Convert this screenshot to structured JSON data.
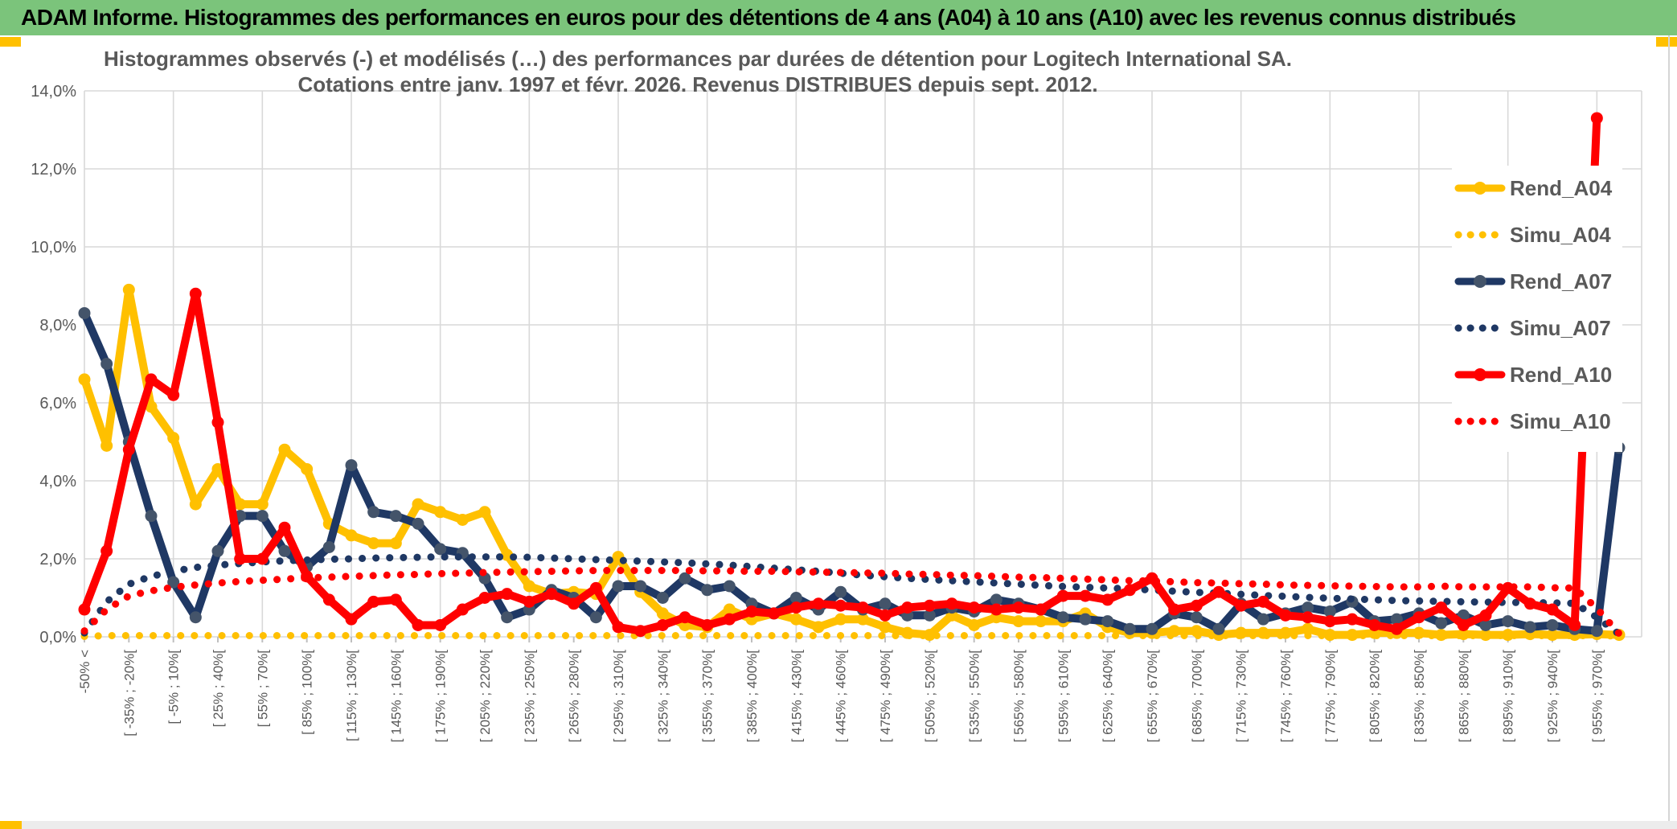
{
  "header": {
    "title": "ADAM Informe. Histogrammes des performances en euros pour des détentions de 4 ans (A04) à 10 ans (A10) avec les revenus connus distribués",
    "bg_color": "#7BC47B",
    "accent_color": "#FFC000"
  },
  "bottom_bar": {
    "bg_color": "#ECECEC",
    "accent_color": "#FFC000"
  },
  "colors": {
    "gold": "#FFC000",
    "navy": "#1F3864",
    "navy_marker": "#44546A",
    "red": "#FF0000",
    "grid": "#D9D9D9",
    "tick": "#BFBFBF",
    "text": "#595959",
    "legend_bg": "#FFFFFF"
  },
  "chart_data": {
    "type": "line",
    "title_lines": [
      "Histogrammes observés (-) et modélisés (…) des performances par durées de détention pour Logitech International SA.",
      "Cotations entre janv. 1997 et févr. 2026. Revenus DISTRIBUES depuis sept. 2012."
    ],
    "ylim": [
      0,
      14
    ],
    "ytick_step": 2,
    "ytick_labels": [
      "0,0%",
      "2,0%",
      "4,0%",
      "6,0%",
      "8,0%",
      "10,0%",
      "12,0%",
      "14,0%"
    ],
    "grid": true,
    "legend_position": "right-inside",
    "categories": [
      "-50% <",
      "",
      "[ -35% ; -20%[",
      "",
      "[ -5% ; 10%[",
      "",
      "[ 25% ; 40%[",
      "",
      "[ 55% ; 70%[",
      "",
      "[ 85% ; 100%[",
      "",
      "[ 115% ; 130%[",
      "",
      "[ 145% ; 160%[",
      "",
      "[ 175% ; 190%[",
      "",
      "[ 205% ; 220%[",
      "",
      "[ 235% ; 250%[",
      "",
      "[ 265% ; 280%[",
      "",
      "[ 295% ; 310%[",
      "",
      "[ 325% ; 340%[",
      "",
      "[ 355% ; 370%[",
      "",
      "[ 385% ; 400%[",
      "",
      "[ 415% ; 430%[",
      "",
      "[ 445% ; 460%[",
      "",
      "[ 475% ; 490%[",
      "",
      "[ 505% ; 520%[",
      "",
      "[ 535% ; 550%[",
      "",
      "[ 565% ; 580%[",
      "",
      "[ 595% ; 610%[",
      "",
      "[ 625% ; 640%[",
      "",
      "[ 655% ; 670%[",
      "",
      "[ 685% ; 700%[",
      "",
      "[ 715% ; 730%[",
      "",
      "[ 745% ; 760%[",
      "",
      "[ 775% ; 790%[",
      "",
      "[ 805% ; 820%[",
      "",
      "[ 835% ; 850%[",
      "",
      "[ 865% ; 880%[",
      "",
      "[ 895% ; 910%[",
      "",
      "[ 925% ; 940%[",
      "",
      "[ 955% ; 970%[",
      ""
    ],
    "series": [
      {
        "name": "Rend_A04",
        "style": "solid",
        "color": "#FFC000",
        "marker_color": "#FFC000",
        "values": [
          6.6,
          4.9,
          8.9,
          5.9,
          5.1,
          3.4,
          4.3,
          3.4,
          3.4,
          4.8,
          4.3,
          2.9,
          2.6,
          2.4,
          2.4,
          3.4,
          3.2,
          3.0,
          3.2,
          2.1,
          1.3,
          1.1,
          1.15,
          1.1,
          2.05,
          1.15,
          0.6,
          0.3,
          0.25,
          0.7,
          0.45,
          0.6,
          0.45,
          0.25,
          0.45,
          0.45,
          0.25,
          0.1,
          0.05,
          0.55,
          0.3,
          0.5,
          0.4,
          0.4,
          0.4,
          0.6,
          0.25,
          0.1,
          0.1,
          0.15,
          0.15,
          0.05,
          0.1,
          0.1,
          0.1,
          0.2,
          0.05,
          0.05,
          0.1,
          0.1,
          0.1,
          0.05,
          0.07,
          0.05,
          0.05,
          0.07,
          0.05,
          0.05,
          0.07,
          0.05
        ]
      },
      {
        "name": "Simu_A04",
        "style": "dotted",
        "color": "#FFC000",
        "marker_color": "#FFC000",
        "values": [
          0.01,
          0.03,
          0.03,
          0.03,
          0.03,
          0.03,
          0.03,
          0.03,
          0.03,
          0.03,
          0.03,
          0.03,
          0.03,
          0.03,
          0.03,
          0.03,
          0.03,
          0.03,
          0.03,
          0.03,
          0.03,
          0.03,
          0.03,
          0.03,
          0.03,
          0.03,
          0.03,
          0.03,
          0.03,
          0.03,
          0.03,
          0.03,
          0.03,
          0.03,
          0.03,
          0.03,
          0.03,
          0.03,
          0.03,
          0.03,
          0.03,
          0.03,
          0.03,
          0.03,
          0.03,
          0.03,
          0.03,
          0.03,
          0.03,
          0.03,
          0.03,
          0.03,
          0.03,
          0.03,
          0.03,
          0.03,
          0.03,
          0.03,
          0.03,
          0.03,
          0.03,
          0.03,
          0.03,
          0.03,
          0.03,
          0.03,
          0.03,
          0.03,
          0.03,
          0.02
        ]
      },
      {
        "name": "Rend_A07",
        "style": "solid",
        "color": "#1F3864",
        "marker_color": "#44546A",
        "values": [
          8.3,
          7.0,
          5.0,
          3.1,
          1.4,
          0.5,
          2.2,
          3.1,
          3.1,
          2.2,
          1.8,
          2.3,
          4.4,
          3.2,
          3.1,
          2.9,
          2.25,
          2.15,
          1.5,
          0.5,
          0.7,
          1.2,
          1.0,
          0.5,
          1.3,
          1.3,
          1.0,
          1.5,
          1.2,
          1.3,
          0.85,
          0.6,
          1.0,
          0.7,
          1.15,
          0.7,
          0.85,
          0.55,
          0.55,
          0.75,
          0.65,
          0.95,
          0.85,
          0.7,
          0.5,
          0.45,
          0.4,
          0.2,
          0.2,
          0.6,
          0.5,
          0.2,
          0.85,
          0.45,
          0.6,
          0.75,
          0.65,
          0.9,
          0.4,
          0.45,
          0.6,
          0.35,
          0.55,
          0.3,
          0.4,
          0.25,
          0.3,
          0.2,
          0.15,
          4.85
        ]
      },
      {
        "name": "Simu_A07",
        "style": "dotted",
        "color": "#1F3864",
        "marker_color": "#1F3864",
        "values": [
          0.1,
          0.9,
          1.35,
          1.55,
          1.68,
          1.78,
          1.84,
          1.88,
          1.92,
          1.95,
          1.97,
          1.99,
          2.0,
          2.02,
          2.03,
          2.04,
          2.05,
          2.05,
          2.05,
          2.05,
          2.04,
          2.02,
          2.0,
          1.98,
          1.96,
          1.94,
          1.92,
          1.9,
          1.87,
          1.84,
          1.8,
          1.76,
          1.72,
          1.68,
          1.63,
          1.58,
          1.54,
          1.5,
          1.47,
          1.44,
          1.41,
          1.38,
          1.35,
          1.32,
          1.29,
          1.27,
          1.25,
          1.23,
          1.2,
          1.17,
          1.14,
          1.12,
          1.09,
          1.06,
          1.04,
          1.01,
          0.99,
          0.97,
          0.95,
          0.93,
          0.92,
          0.91,
          0.9,
          0.89,
          0.88,
          0.88,
          0.87,
          0.86,
          0.5,
          0.07
        ]
      },
      {
        "name": "Rend_A10",
        "style": "solid",
        "color": "#FF0000",
        "marker_color": "#FF0000",
        "values": [
          0.7,
          2.2,
          4.8,
          6.6,
          6.2,
          8.8,
          5.5,
          2.0,
          2.0,
          2.8,
          1.55,
          0.95,
          0.45,
          0.9,
          0.95,
          0.3,
          0.3,
          0.7,
          1.0,
          1.1,
          0.9,
          1.1,
          0.85,
          1.25,
          0.25,
          0.15,
          0.3,
          0.5,
          0.3,
          0.45,
          0.65,
          0.6,
          0.75,
          0.85,
          0.8,
          0.75,
          0.55,
          0.75,
          0.8,
          0.85,
          0.75,
          0.7,
          0.75,
          0.7,
          1.05,
          1.05,
          0.95,
          1.2,
          1.5,
          0.7,
          0.8,
          1.15,
          0.8,
          0.9,
          0.55,
          0.5,
          0.4,
          0.45,
          0.3,
          0.2,
          0.5,
          0.75,
          0.3,
          0.55,
          1.25,
          0.85,
          0.7,
          0.3,
          13.3,
          null
        ]
      },
      {
        "name": "Simu_A10",
        "style": "dotted",
        "color": "#FF0000",
        "marker_color": "#FF0000",
        "values": [
          0.15,
          0.7,
          1.05,
          1.18,
          1.27,
          1.33,
          1.38,
          1.42,
          1.45,
          1.48,
          1.51,
          1.53,
          1.55,
          1.57,
          1.59,
          1.6,
          1.62,
          1.63,
          1.65,
          1.66,
          1.67,
          1.68,
          1.69,
          1.7,
          1.7,
          1.7,
          1.7,
          1.7,
          1.69,
          1.69,
          1.68,
          1.68,
          1.67,
          1.66,
          1.65,
          1.64,
          1.63,
          1.61,
          1.6,
          1.58,
          1.57,
          1.55,
          1.53,
          1.52,
          1.5,
          1.48,
          1.46,
          1.44,
          1.43,
          1.41,
          1.39,
          1.38,
          1.36,
          1.35,
          1.33,
          1.32,
          1.31,
          1.3,
          1.29,
          1.28,
          1.28,
          1.3,
          1.28,
          1.28,
          1.28,
          1.28,
          1.26,
          1.25,
          0.73,
          0.08
        ]
      }
    ],
    "legend": [
      "Rend_A04",
      "Simu_A04",
      "Rend_A07",
      "Simu_A07",
      "Rend_A10",
      "Simu_A10"
    ]
  }
}
